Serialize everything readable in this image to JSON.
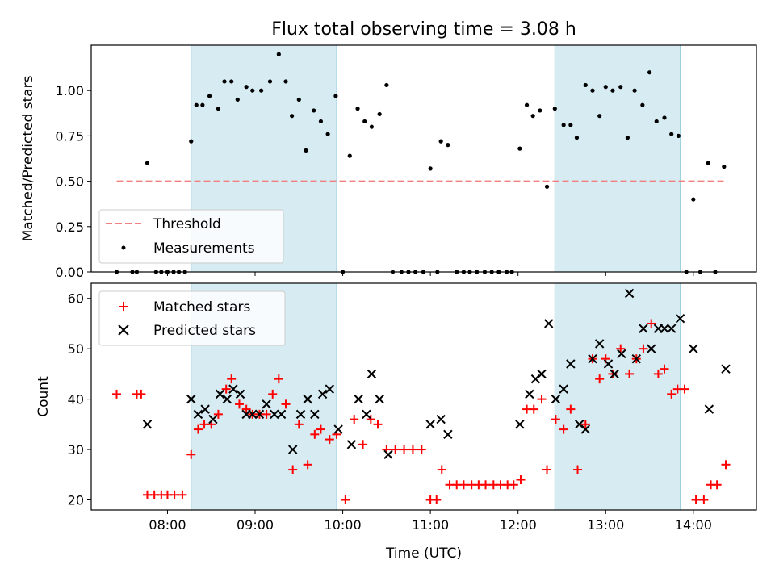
{
  "chart_data": [
    {
      "type": "scatter",
      "title": "Flux total observing time = 3.08 h",
      "xlabel": "",
      "ylabel": "Matched/Predicted stars",
      "xlim": [
        7.13,
        14.72
      ],
      "ylim": [
        0.0,
        1.25
      ],
      "yticks": [
        0.0,
        0.25,
        0.5,
        0.75,
        1.0
      ],
      "ytick_labels": [
        "0.00",
        "0.25",
        "0.50",
        "0.75",
        "1.00"
      ],
      "shaded_intervals": [
        [
          8.27,
          9.93
        ],
        [
          12.42,
          13.85
        ]
      ],
      "threshold": {
        "label": "Threshold",
        "value": 0.5,
        "x_range": [
          7.42,
          14.37
        ],
        "color": "#f08080"
      },
      "legend": [
        "Threshold",
        "Measurements"
      ],
      "legend_position": "lower-left",
      "series": [
        {
          "name": "Measurements",
          "color": "#000000",
          "points": [
            [
              7.42,
              0.0
            ],
            [
              7.6,
              0.0
            ],
            [
              7.65,
              0.0
            ],
            [
              7.77,
              0.6
            ],
            [
              7.87,
              0.0
            ],
            [
              7.93,
              0.0
            ],
            [
              8.0,
              0.0
            ],
            [
              8.07,
              0.0
            ],
            [
              8.13,
              0.0
            ],
            [
              8.2,
              0.0
            ],
            [
              8.27,
              0.72
            ],
            [
              8.33,
              0.92
            ],
            [
              8.4,
              0.92
            ],
            [
              8.48,
              0.97
            ],
            [
              8.58,
              0.9
            ],
            [
              8.65,
              1.05
            ],
            [
              8.73,
              1.05
            ],
            [
              8.8,
              0.95
            ],
            [
              8.9,
              1.02
            ],
            [
              8.97,
              1.0
            ],
            [
              9.07,
              1.0
            ],
            [
              9.17,
              1.05
            ],
            [
              9.27,
              1.2
            ],
            [
              9.35,
              1.05
            ],
            [
              9.42,
              0.86
            ],
            [
              9.5,
              0.95
            ],
            [
              9.58,
              0.67
            ],
            [
              9.67,
              0.89
            ],
            [
              9.75,
              0.83
            ],
            [
              9.83,
              0.76
            ],
            [
              9.92,
              0.97
            ],
            [
              10.0,
              0.0
            ],
            [
              10.08,
              0.64
            ],
            [
              10.17,
              0.9
            ],
            [
              10.25,
              0.83
            ],
            [
              10.33,
              0.8
            ],
            [
              10.42,
              0.87
            ],
            [
              10.5,
              1.03
            ],
            [
              10.57,
              0.0
            ],
            [
              10.67,
              0.0
            ],
            [
              10.75,
              0.0
            ],
            [
              10.83,
              0.0
            ],
            [
              10.92,
              0.0
            ],
            [
              11.0,
              0.57
            ],
            [
              11.08,
              0.0
            ],
            [
              11.12,
              0.72
            ],
            [
              11.2,
              0.7
            ],
            [
              11.3,
              0.0
            ],
            [
              11.38,
              0.0
            ],
            [
              11.45,
              0.0
            ],
            [
              11.53,
              0.0
            ],
            [
              11.62,
              0.0
            ],
            [
              11.7,
              0.0
            ],
            [
              11.78,
              0.0
            ],
            [
              11.87,
              0.0
            ],
            [
              11.93,
              0.0
            ],
            [
              12.02,
              0.68
            ],
            [
              12.1,
              0.92
            ],
            [
              12.17,
              0.86
            ],
            [
              12.25,
              0.89
            ],
            [
              12.33,
              0.47
            ],
            [
              12.42,
              0.9
            ],
            [
              12.52,
              0.81
            ],
            [
              12.6,
              0.81
            ],
            [
              12.67,
              0.74
            ],
            [
              12.77,
              1.03
            ],
            [
              12.85,
              1.0
            ],
            [
              12.93,
              0.86
            ],
            [
              13.0,
              1.02
            ],
            [
              13.08,
              1.0
            ],
            [
              13.17,
              1.02
            ],
            [
              13.25,
              0.74
            ],
            [
              13.33,
              1.0
            ],
            [
              13.42,
              0.92
            ],
            [
              13.5,
              1.1
            ],
            [
              13.58,
              0.83
            ],
            [
              13.67,
              0.85
            ],
            [
              13.75,
              0.76
            ],
            [
              13.83,
              0.75
            ],
            [
              13.92,
              0.0
            ],
            [
              14.0,
              0.4
            ],
            [
              14.08,
              0.0
            ],
            [
              14.17,
              0.6
            ],
            [
              14.25,
              0.0
            ],
            [
              14.35,
              0.58
            ]
          ]
        }
      ]
    },
    {
      "type": "scatter",
      "title": "",
      "xlabel": "Time (UTC)",
      "ylabel": "Count",
      "xlim": [
        7.13,
        14.72
      ],
      "ylim": [
        18,
        63
      ],
      "yticks": [
        20,
        30,
        40,
        50,
        60
      ],
      "ytick_labels": [
        "20",
        "30",
        "40",
        "50",
        "60"
      ],
      "xticks": [
        8,
        9,
        10,
        11,
        12,
        13,
        14
      ],
      "xtick_labels": [
        "08:00",
        "09:00",
        "10:00",
        "11:00",
        "12:00",
        "13:00",
        "14:00"
      ],
      "shaded_intervals": [
        [
          8.27,
          9.93
        ],
        [
          12.42,
          13.85
        ]
      ],
      "legend": [
        "Matched stars",
        "Predicted stars"
      ],
      "legend_position": "upper-left",
      "series": [
        {
          "name": "Matched stars",
          "color": "#ff0000",
          "marker": "+",
          "points": [
            [
              7.42,
              41
            ],
            [
              7.65,
              41
            ],
            [
              7.7,
              41
            ],
            [
              7.77,
              21
            ],
            [
              7.85,
              21
            ],
            [
              7.93,
              21
            ],
            [
              8.0,
              21
            ],
            [
              8.08,
              21
            ],
            [
              8.17,
              21
            ],
            [
              8.27,
              29
            ],
            [
              8.35,
              34
            ],
            [
              8.42,
              35
            ],
            [
              8.5,
              35
            ],
            [
              8.58,
              37
            ],
            [
              8.67,
              42
            ],
            [
              8.73,
              44
            ],
            [
              8.82,
              39
            ],
            [
              8.9,
              38
            ],
            [
              8.97,
              37
            ],
            [
              9.05,
              37
            ],
            [
              9.13,
              37
            ],
            [
              9.2,
              41
            ],
            [
              9.27,
              44
            ],
            [
              9.35,
              39
            ],
            [
              9.43,
              26
            ],
            [
              9.5,
              35
            ],
            [
              9.6,
              27
            ],
            [
              9.68,
              33
            ],
            [
              9.75,
              34
            ],
            [
              9.85,
              32
            ],
            [
              9.93,
              33
            ],
            [
              10.03,
              20
            ],
            [
              10.13,
              36
            ],
            [
              10.23,
              31
            ],
            [
              10.32,
              36
            ],
            [
              10.4,
              35
            ],
            [
              10.5,
              30
            ],
            [
              10.6,
              30
            ],
            [
              10.7,
              30
            ],
            [
              10.8,
              30
            ],
            [
              10.9,
              30
            ],
            [
              11.0,
              20
            ],
            [
              11.07,
              20
            ],
            [
              11.13,
              26
            ],
            [
              11.22,
              23
            ],
            [
              11.3,
              23
            ],
            [
              11.38,
              23
            ],
            [
              11.47,
              23
            ],
            [
              11.55,
              23
            ],
            [
              11.63,
              23
            ],
            [
              11.72,
              23
            ],
            [
              11.8,
              23
            ],
            [
              11.88,
              23
            ],
            [
              11.95,
              23
            ],
            [
              12.03,
              24
            ],
            [
              12.1,
              38
            ],
            [
              12.18,
              38
            ],
            [
              12.27,
              40
            ],
            [
              12.33,
              26
            ],
            [
              12.43,
              36
            ],
            [
              12.52,
              34
            ],
            [
              12.6,
              38
            ],
            [
              12.68,
              26
            ],
            [
              12.77,
              35
            ],
            [
              12.85,
              48
            ],
            [
              12.93,
              44
            ],
            [
              13.0,
              48
            ],
            [
              13.08,
              45
            ],
            [
              13.17,
              50
            ],
            [
              13.27,
              45
            ],
            [
              13.35,
              48
            ],
            [
              13.43,
              50
            ],
            [
              13.52,
              55
            ],
            [
              13.6,
              45
            ],
            [
              13.67,
              46
            ],
            [
              13.75,
              41
            ],
            [
              13.82,
              42
            ],
            [
              13.9,
              42
            ],
            [
              14.03,
              20
            ],
            [
              14.12,
              20
            ],
            [
              14.2,
              23
            ],
            [
              14.27,
              23
            ],
            [
              14.37,
              27
            ]
          ]
        },
        {
          "name": "Predicted stars",
          "color": "#000000",
          "marker": "x",
          "points": [
            [
              7.77,
              35
            ],
            [
              8.27,
              40
            ],
            [
              8.35,
              37
            ],
            [
              8.43,
              38
            ],
            [
              8.52,
              36
            ],
            [
              8.6,
              41
            ],
            [
              8.68,
              40
            ],
            [
              8.75,
              42
            ],
            [
              8.83,
              41
            ],
            [
              8.9,
              37
            ],
            [
              8.97,
              37
            ],
            [
              9.05,
              37
            ],
            [
              9.13,
              39
            ],
            [
              9.22,
              37
            ],
            [
              9.3,
              37
            ],
            [
              9.43,
              30
            ],
            [
              9.52,
              37
            ],
            [
              9.6,
              40
            ],
            [
              9.68,
              37
            ],
            [
              9.77,
              41
            ],
            [
              9.85,
              42
            ],
            [
              9.95,
              34
            ],
            [
              10.1,
              31
            ],
            [
              10.18,
              40
            ],
            [
              10.27,
              37
            ],
            [
              10.33,
              45
            ],
            [
              10.42,
              40
            ],
            [
              10.52,
              29
            ],
            [
              11.0,
              35
            ],
            [
              11.12,
              36
            ],
            [
              11.2,
              33
            ],
            [
              12.02,
              35
            ],
            [
              12.13,
              41
            ],
            [
              12.2,
              44
            ],
            [
              12.27,
              45
            ],
            [
              12.35,
              55
            ],
            [
              12.43,
              40
            ],
            [
              12.52,
              42
            ],
            [
              12.6,
              47
            ],
            [
              12.7,
              35
            ],
            [
              12.77,
              34
            ],
            [
              12.85,
              48
            ],
            [
              12.93,
              51
            ],
            [
              13.03,
              47
            ],
            [
              13.1,
              45
            ],
            [
              13.18,
              49
            ],
            [
              13.27,
              61
            ],
            [
              13.35,
              48
            ],
            [
              13.43,
              54
            ],
            [
              13.52,
              50
            ],
            [
              13.6,
              54
            ],
            [
              13.67,
              54
            ],
            [
              13.75,
              54
            ],
            [
              13.85,
              56
            ],
            [
              14.0,
              50
            ],
            [
              14.18,
              38
            ],
            [
              14.37,
              46
            ]
          ]
        }
      ]
    }
  ]
}
